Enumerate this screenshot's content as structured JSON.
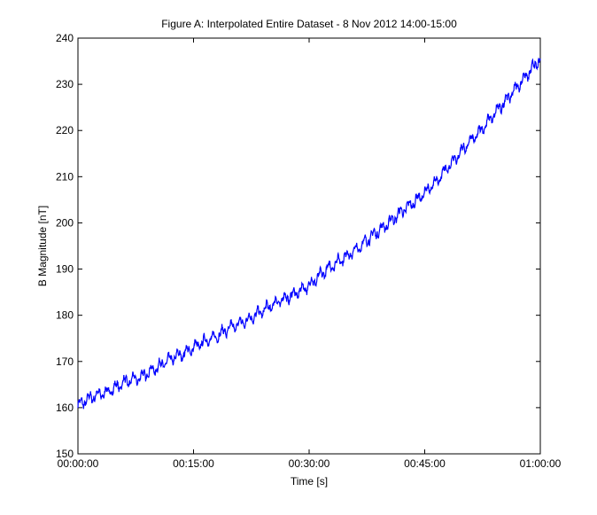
{
  "chart_data": {
    "type": "line",
    "title": "Figure A: Interpolated Entire Dataset - 8 Nov 2012 14:00-15:00",
    "xlabel": "Time [s]",
    "ylabel": "B Magnitude [nT]",
    "xlim": [
      0,
      3600
    ],
    "ylim": [
      150,
      240
    ],
    "x_ticks": [
      {
        "value": 0,
        "label": "00:00:00"
      },
      {
        "value": 900,
        "label": "00:15:00"
      },
      {
        "value": 1800,
        "label": "00:30:00"
      },
      {
        "value": 2700,
        "label": "00:45:00"
      },
      {
        "value": 3600,
        "label": "01:00:00"
      }
    ],
    "y_ticks": [
      {
        "value": 150,
        "label": "150"
      },
      {
        "value": 160,
        "label": "160"
      },
      {
        "value": 170,
        "label": "170"
      },
      {
        "value": 180,
        "label": "180"
      },
      {
        "value": 190,
        "label": "190"
      },
      {
        "value": 200,
        "label": "200"
      },
      {
        "value": 210,
        "label": "210"
      },
      {
        "value": 220,
        "label": "220"
      },
      {
        "value": 230,
        "label": "230"
      },
      {
        "value": 240,
        "label": "240"
      }
    ],
    "grid": false,
    "legend": "none",
    "line_color": "#0000ff",
    "series": [
      {
        "x": [
          0,
          120,
          240,
          360,
          480,
          600,
          720,
          840,
          960,
          1080,
          1200,
          1320,
          1440,
          1560,
          1680,
          1800,
          1920,
          2040,
          2160,
          2280,
          2400,
          2520,
          2640,
          2760,
          2880,
          3000,
          3120,
          3240,
          3360,
          3480,
          3600
        ],
        "y": [
          160.5,
          162.5,
          163.5,
          165.5,
          166.5,
          168.5,
          170.5,
          172.0,
          174.0,
          175.5,
          177.5,
          179.0,
          181.0,
          183.0,
          184.5,
          186.5,
          189.5,
          192.0,
          194.0,
          197.0,
          199.5,
          202.5,
          205.0,
          208.0,
          212.0,
          216.0,
          219.5,
          223.5,
          227.5,
          231.5,
          235.5
        ]
      }
    ]
  }
}
